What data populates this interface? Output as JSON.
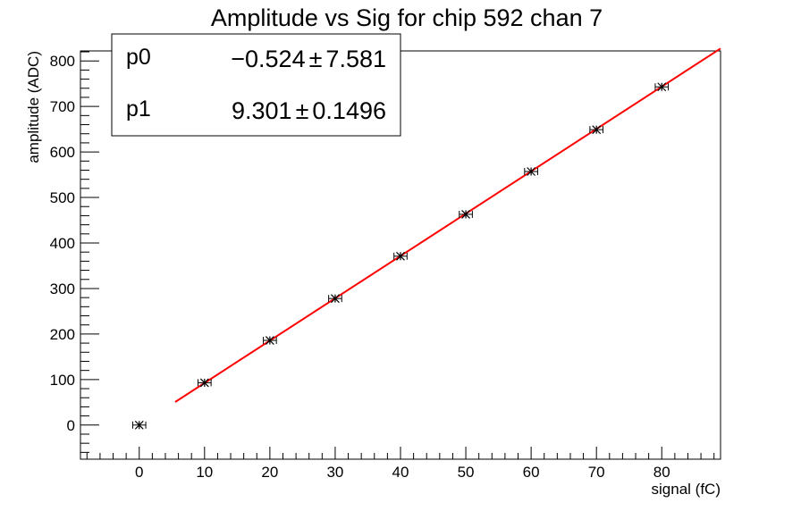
{
  "chart_data": {
    "type": "scatter",
    "title": "Amplitude vs Sig for chip 592 chan 7",
    "xlabel": "signal (fC)",
    "ylabel": "amplitude (ADC)",
    "xlim": [
      -9,
      89
    ],
    "ylim": [
      -75,
      822
    ],
    "xticks": [
      0,
      10,
      20,
      30,
      40,
      50,
      60,
      70,
      80
    ],
    "yticks": [
      0,
      100,
      200,
      300,
      400,
      500,
      600,
      700,
      800
    ],
    "grid": false,
    "series": [
      {
        "name": "",
        "x": [
          0,
          10,
          20,
          30,
          40,
          50,
          60,
          70,
          80
        ],
        "y": [
          0,
          93,
          186,
          278,
          371,
          463,
          557,
          649,
          743
        ],
        "x_error": [
          1,
          1,
          1,
          1,
          1,
          1,
          1,
          1,
          1
        ],
        "marker": "star",
        "color": "#000000"
      }
    ],
    "fit": {
      "type": "linear",
      "color": "#ff0000",
      "x_range": [
        5.5,
        89
      ],
      "p0": -0.524,
      "p1": 9.301
    },
    "stats_box": {
      "position": "top-left",
      "rows": [
        {
          "name": "p0",
          "value": "−0.524",
          "pm": "±",
          "error": "7.581"
        },
        {
          "name": "p1",
          "value": "9.301",
          "pm": "±",
          "error": "0.1496"
        }
      ]
    }
  }
}
